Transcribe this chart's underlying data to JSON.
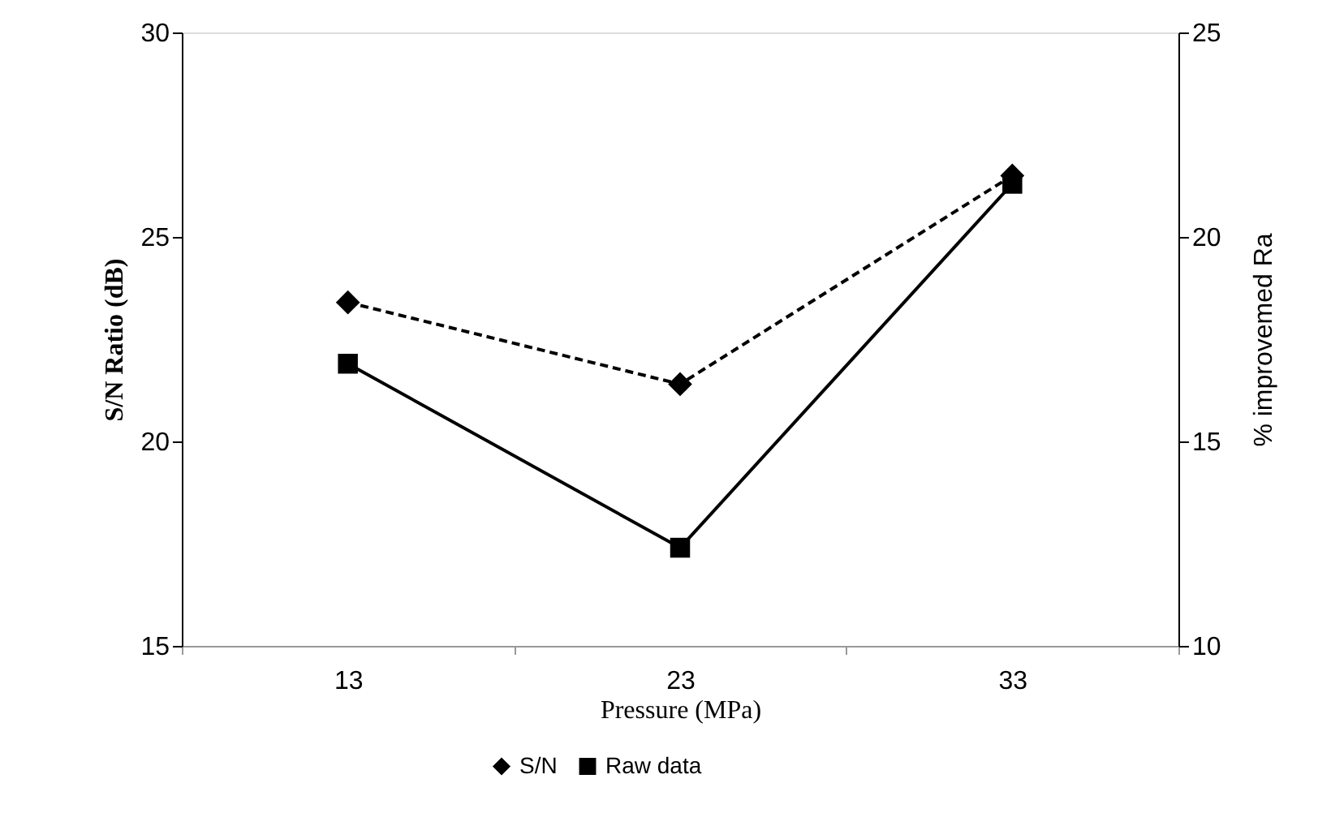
{
  "chart_data": {
    "type": "line",
    "xlabel": "Pressure (MPa)",
    "ylabel": "S/N Ratio (dB)",
    "y2label": "% improvemed Ra",
    "categories": [
      "13",
      "23",
      "33"
    ],
    "series": [
      {
        "name": "S/N",
        "color": "#000000",
        "values": [
          23.4,
          21.4,
          26.5
        ],
        "marker": "diamond",
        "line_style": "dashed"
      },
      {
        "name": "Raw data",
        "color": "#000000",
        "values": [
          16.9,
          12.4,
          21.3
        ],
        "marker": "square",
        "line_style": "solid",
        "axis": "y2"
      }
    ],
    "ylim": [
      15,
      30
    ],
    "yticks": [
      15,
      20,
      25,
      30
    ],
    "y2lim": [
      10,
      25
    ],
    "y2ticks": [
      10,
      15,
      20,
      25
    ],
    "grid": false,
    "legend": "bottom"
  }
}
